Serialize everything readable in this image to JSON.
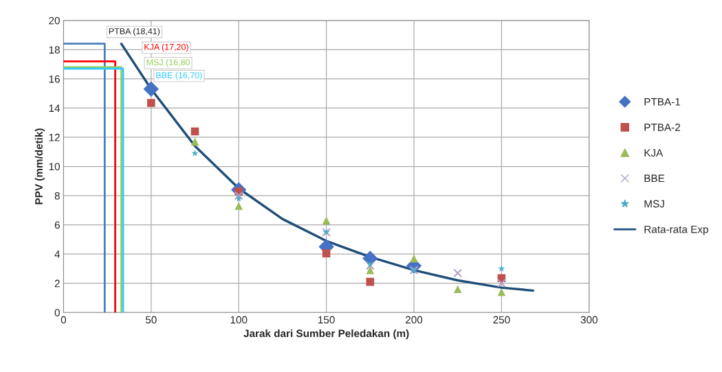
{
  "chart_data": {
    "type": "scatter",
    "xlabel": "Jarak dari Sumber Peledakan (m)",
    "ylabel": "PPV (mm/detik)",
    "xlim": [
      0,
      300
    ],
    "xticks": [
      0,
      50,
      100,
      150,
      200,
      250,
      300
    ],
    "ylim": [
      0,
      20
    ],
    "yticks": [
      0,
      2,
      4,
      6,
      8,
      10,
      12,
      14,
      16,
      18,
      20
    ],
    "grid": true,
    "legend": "right",
    "series": [
      {
        "name": "PTBA-1",
        "marker": "diamond",
        "color": "#4472c4",
        "x": [
          50,
          100,
          150,
          175,
          200
        ],
        "values": [
          15.3,
          8.4,
          4.5,
          3.7,
          3.2
        ]
      },
      {
        "name": "PTBA-2",
        "marker": "square",
        "color": "#c0504d",
        "x": [
          50,
          75,
          100,
          150,
          175,
          250
        ],
        "values": [
          14.35,
          12.4,
          8.3,
          4.05,
          2.1,
          2.35
        ]
      },
      {
        "name": "KJA",
        "marker": "triangle",
        "color": "#9bbb59",
        "x": [
          75,
          100,
          150,
          175,
          200,
          225,
          250
        ],
        "values": [
          11.7,
          7.3,
          6.3,
          2.9,
          3.7,
          1.6,
          1.4
        ]
      },
      {
        "name": "BBE",
        "marker": "cross",
        "color": "#b3a2c7",
        "x": [
          100,
          150,
          175,
          200,
          225,
          250
        ],
        "values": [
          8.0,
          5.5,
          3.2,
          2.9,
          2.7,
          2.0
        ]
      },
      {
        "name": "MSJ",
        "marker": "star",
        "color": "#4bacc6",
        "x": [
          75,
          100,
          150,
          175,
          200,
          250
        ],
        "values": [
          10.9,
          7.8,
          5.5,
          3.3,
          2.9,
          3.0
        ]
      },
      {
        "name": "Rata-rata Exp",
        "type": "line",
        "color": "#1f4e79",
        "x": [
          33,
          50,
          75,
          100,
          125,
          150,
          175,
          200,
          225,
          250,
          268
        ],
        "values": [
          18.4,
          15.3,
          11.4,
          8.5,
          6.4,
          4.9,
          3.8,
          2.9,
          2.2,
          1.7,
          1.5
        ]
      },
      {
        "type": "line",
        "color": "#4a7ebb",
        "x": [
          0,
          23.5,
          23.5
        ],
        "values": [
          18.41,
          18.41,
          0
        ]
      },
      {
        "type": "line",
        "color": "#ff0000",
        "x": [
          0,
          29.5,
          29.5
        ],
        "values": [
          17.2,
          17.2,
          0
        ]
      },
      {
        "type": "line",
        "color": "#92d050",
        "x": [
          0,
          33,
          33
        ],
        "values": [
          16.8,
          16.8,
          0
        ]
      },
      {
        "type": "line",
        "color": "#33ccff",
        "x": [
          0,
          34,
          34
        ],
        "values": [
          16.7,
          16.7,
          0
        ]
      }
    ],
    "annotations": [
      "PTBA (18,41)",
      "KJA (17,20)",
      "MSJ (16,80",
      "BBE (16,70)"
    ]
  }
}
